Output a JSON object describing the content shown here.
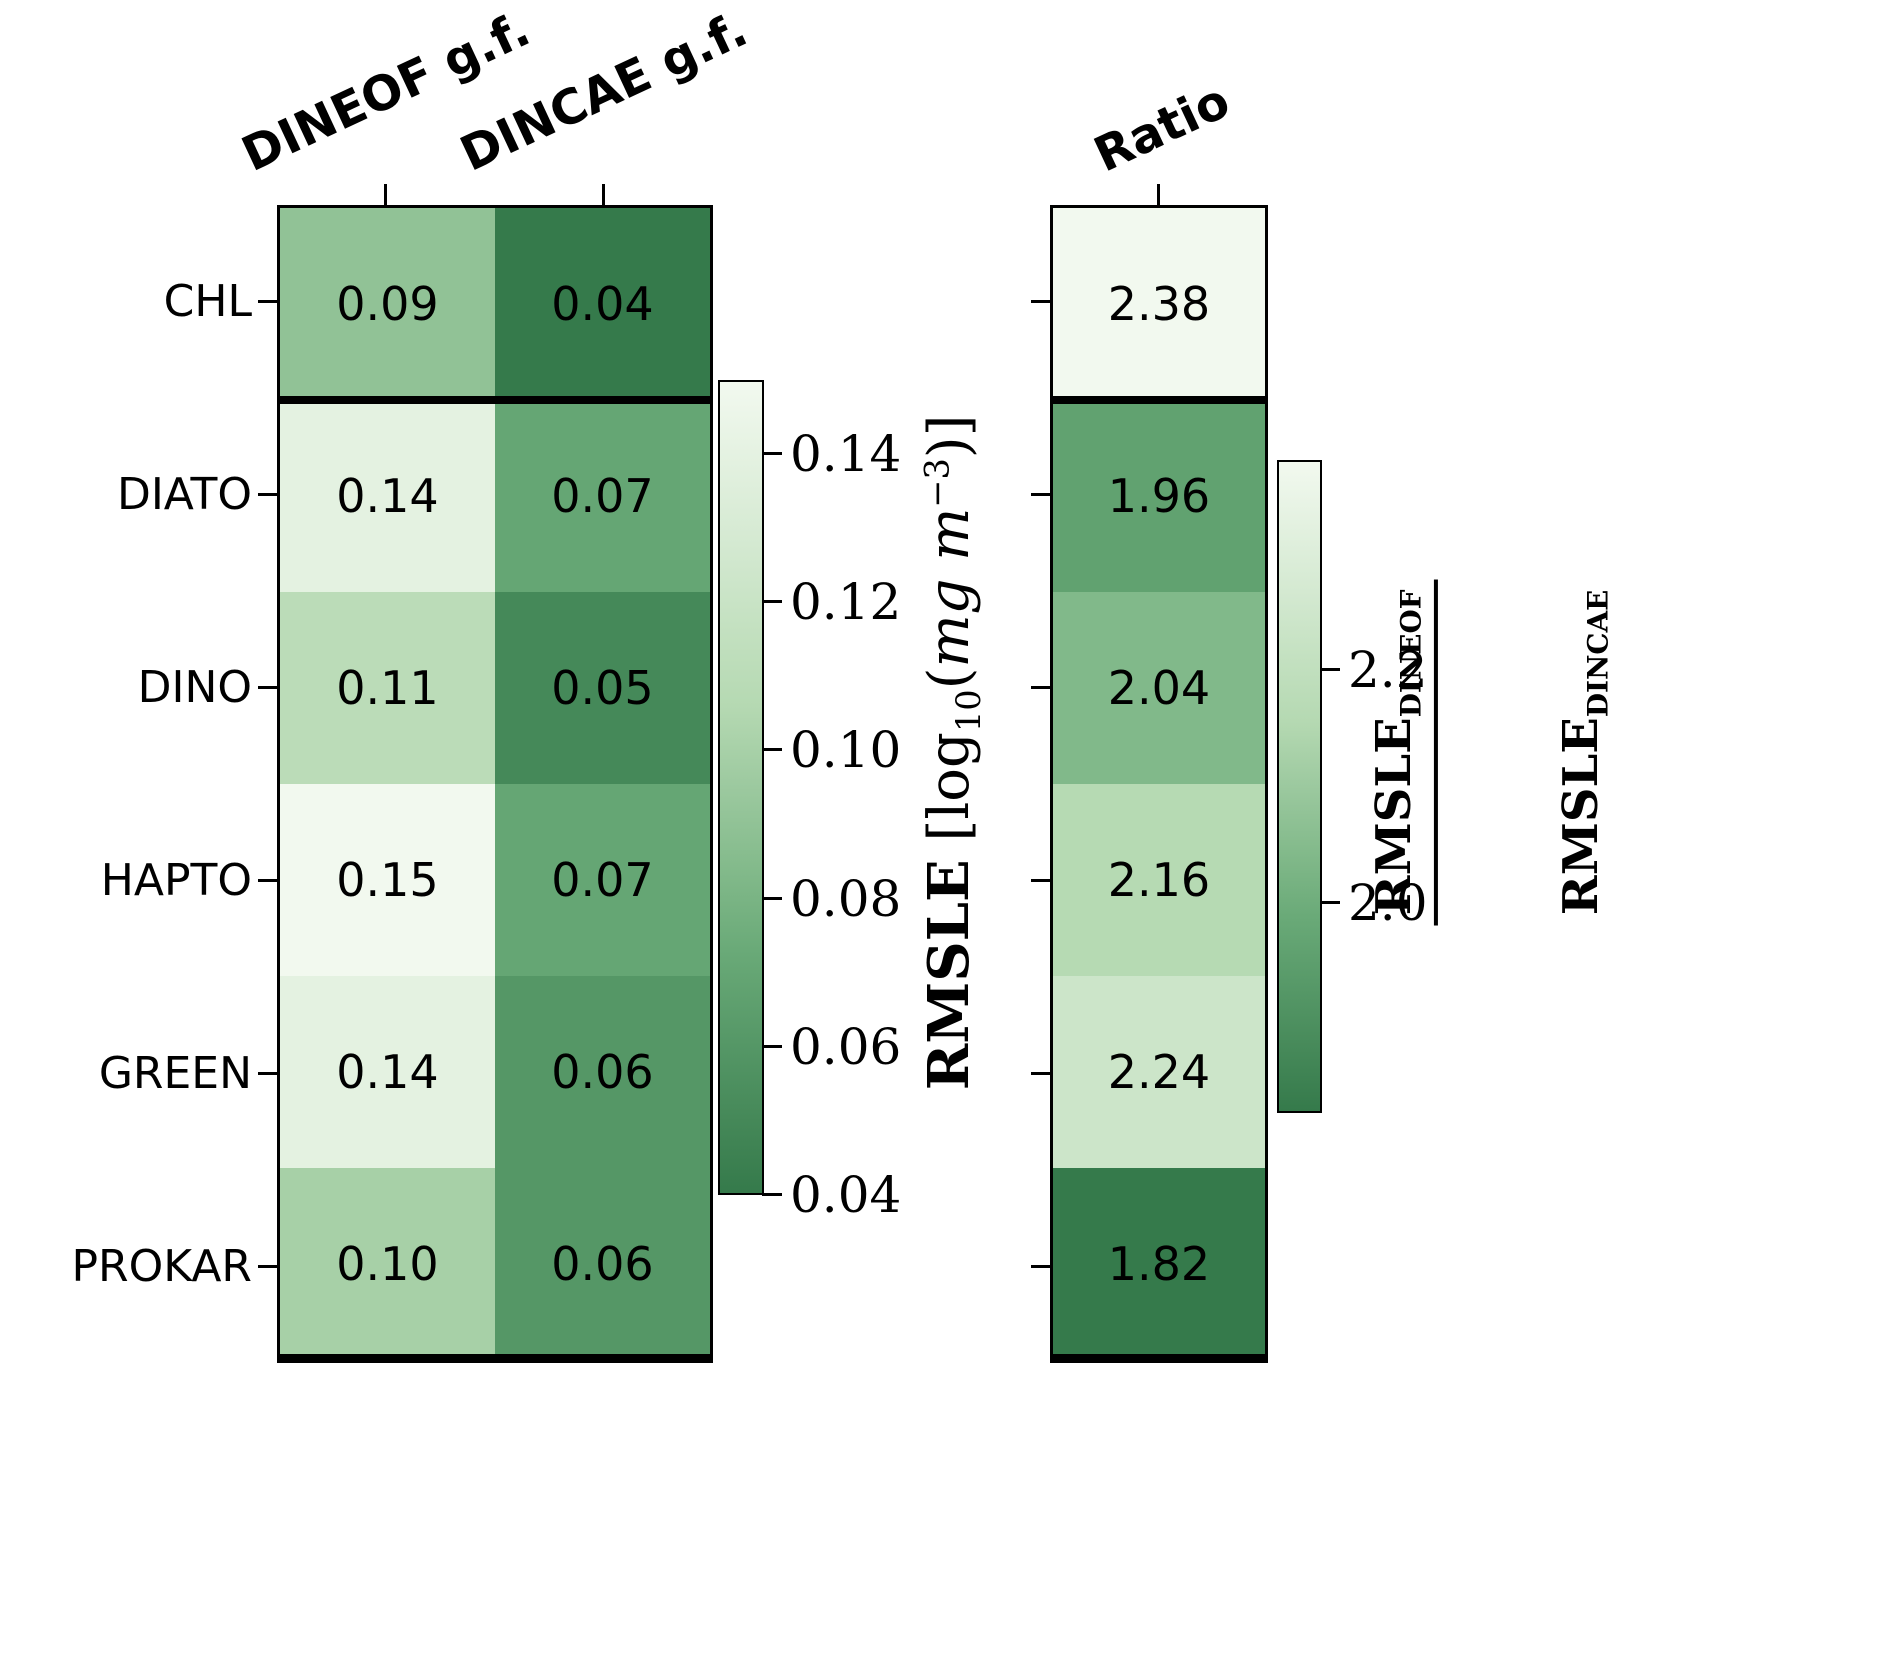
{
  "chart_data": {
    "type": "heatmap",
    "rows": [
      "CHL",
      "DIATO",
      "DINO",
      "HAPTO",
      "GREEN",
      "PROKAR"
    ],
    "panels": [
      {
        "name": "rmsle-by-method",
        "columns": [
          "DINEOF g.f.",
          "DINCAE g.f."
        ],
        "values": [
          [
            0.09,
            0.04
          ],
          [
            0.14,
            0.07
          ],
          [
            0.11,
            0.05
          ],
          [
            0.15,
            0.07
          ],
          [
            0.14,
            0.06
          ],
          [
            0.1,
            0.06
          ]
        ],
        "value_decimals": 2,
        "vmin": 0.04,
        "vmax": 0.15,
        "colorbar_ticks": [
          0.14,
          0.12,
          0.1,
          0.08,
          0.06,
          0.04
        ],
        "tick_decimals": 2,
        "colorbar_label": "RMSLE [log10(mg m^-3)]"
      },
      {
        "name": "rmsle-ratio",
        "columns": [
          "Ratio"
        ],
        "values": [
          [
            2.38
          ],
          [
            1.96
          ],
          [
            2.04
          ],
          [
            2.16
          ],
          [
            2.24
          ],
          [
            1.82
          ]
        ],
        "value_decimals": 2,
        "vmin": 1.82,
        "vmax": 2.38,
        "colorbar_ticks": [
          2.2,
          2.0
        ],
        "tick_decimals": 1,
        "colorbar_label": "RMSLE_DINEOF / RMSLE_DINCAE"
      }
    ],
    "colormap": "Greens_r (dark = low value, light = high value)",
    "colormap_stops": [
      {
        "t": 0,
        "color": "#357a4b"
      },
      {
        "t": 0.3,
        "color": "#6aaa78"
      },
      {
        "t": 0.6,
        "color": "#b5d9b2"
      },
      {
        "t": 1,
        "color": "#f2f9ef"
      }
    ],
    "separator_after_row": "CHL",
    "legend_position": "right colorbars"
  },
  "labels": {
    "cb1": {
      "bold": "RMSLE",
      "open": " [log",
      "sub": "10",
      "paren": "(",
      "italic": "mg m",
      "sup": "−3",
      "close": ")]"
    },
    "cb2": {
      "num": "RMSLE",
      "num_sub": "DINEOF",
      "den": "RMSLE",
      "den_sub": "DINCAE"
    }
  }
}
